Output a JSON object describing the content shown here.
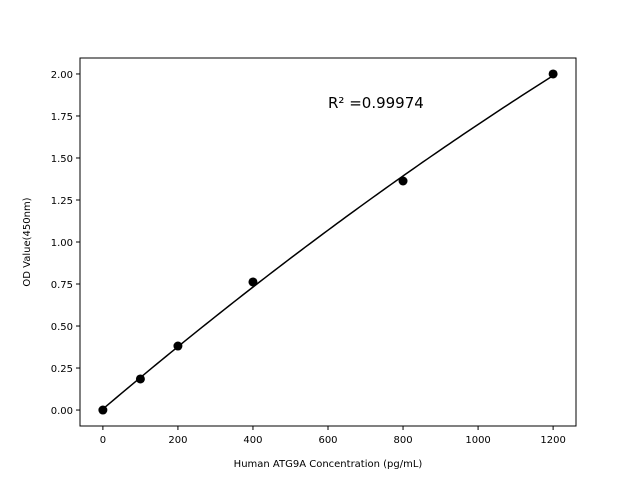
{
  "chart_data": {
    "type": "scatter",
    "xlabel": "Human ATG9A Concentration (pg/mL)",
    "ylabel": "OD Value(450nm)",
    "annotation": "R² =0.99974",
    "xlim": [
      -61,
      1261
    ],
    "ylim": [
      -0.095,
      2.095
    ],
    "x_ticks": [
      0,
      200,
      400,
      600,
      800,
      1000,
      1200
    ],
    "x_tick_labels": [
      "0",
      "200",
      "400",
      "600",
      "800",
      "1000",
      "1200"
    ],
    "y_ticks": [
      0,
      0.25,
      0.5,
      0.75,
      1.0,
      1.25,
      1.5,
      1.75,
      2.0
    ],
    "y_tick_labels": [
      "0.00",
      "0.25",
      "0.50",
      "0.75",
      "1.00",
      "1.25",
      "1.50",
      "1.75",
      "2.00"
    ],
    "grid": false,
    "points": {
      "x": [
        0,
        100,
        200,
        400,
        800,
        1200
      ],
      "y": [
        0.0,
        0.185,
        0.381,
        0.762,
        1.363,
        2.0
      ]
    },
    "fit": "quadratic curve through points",
    "color": "#000000"
  }
}
